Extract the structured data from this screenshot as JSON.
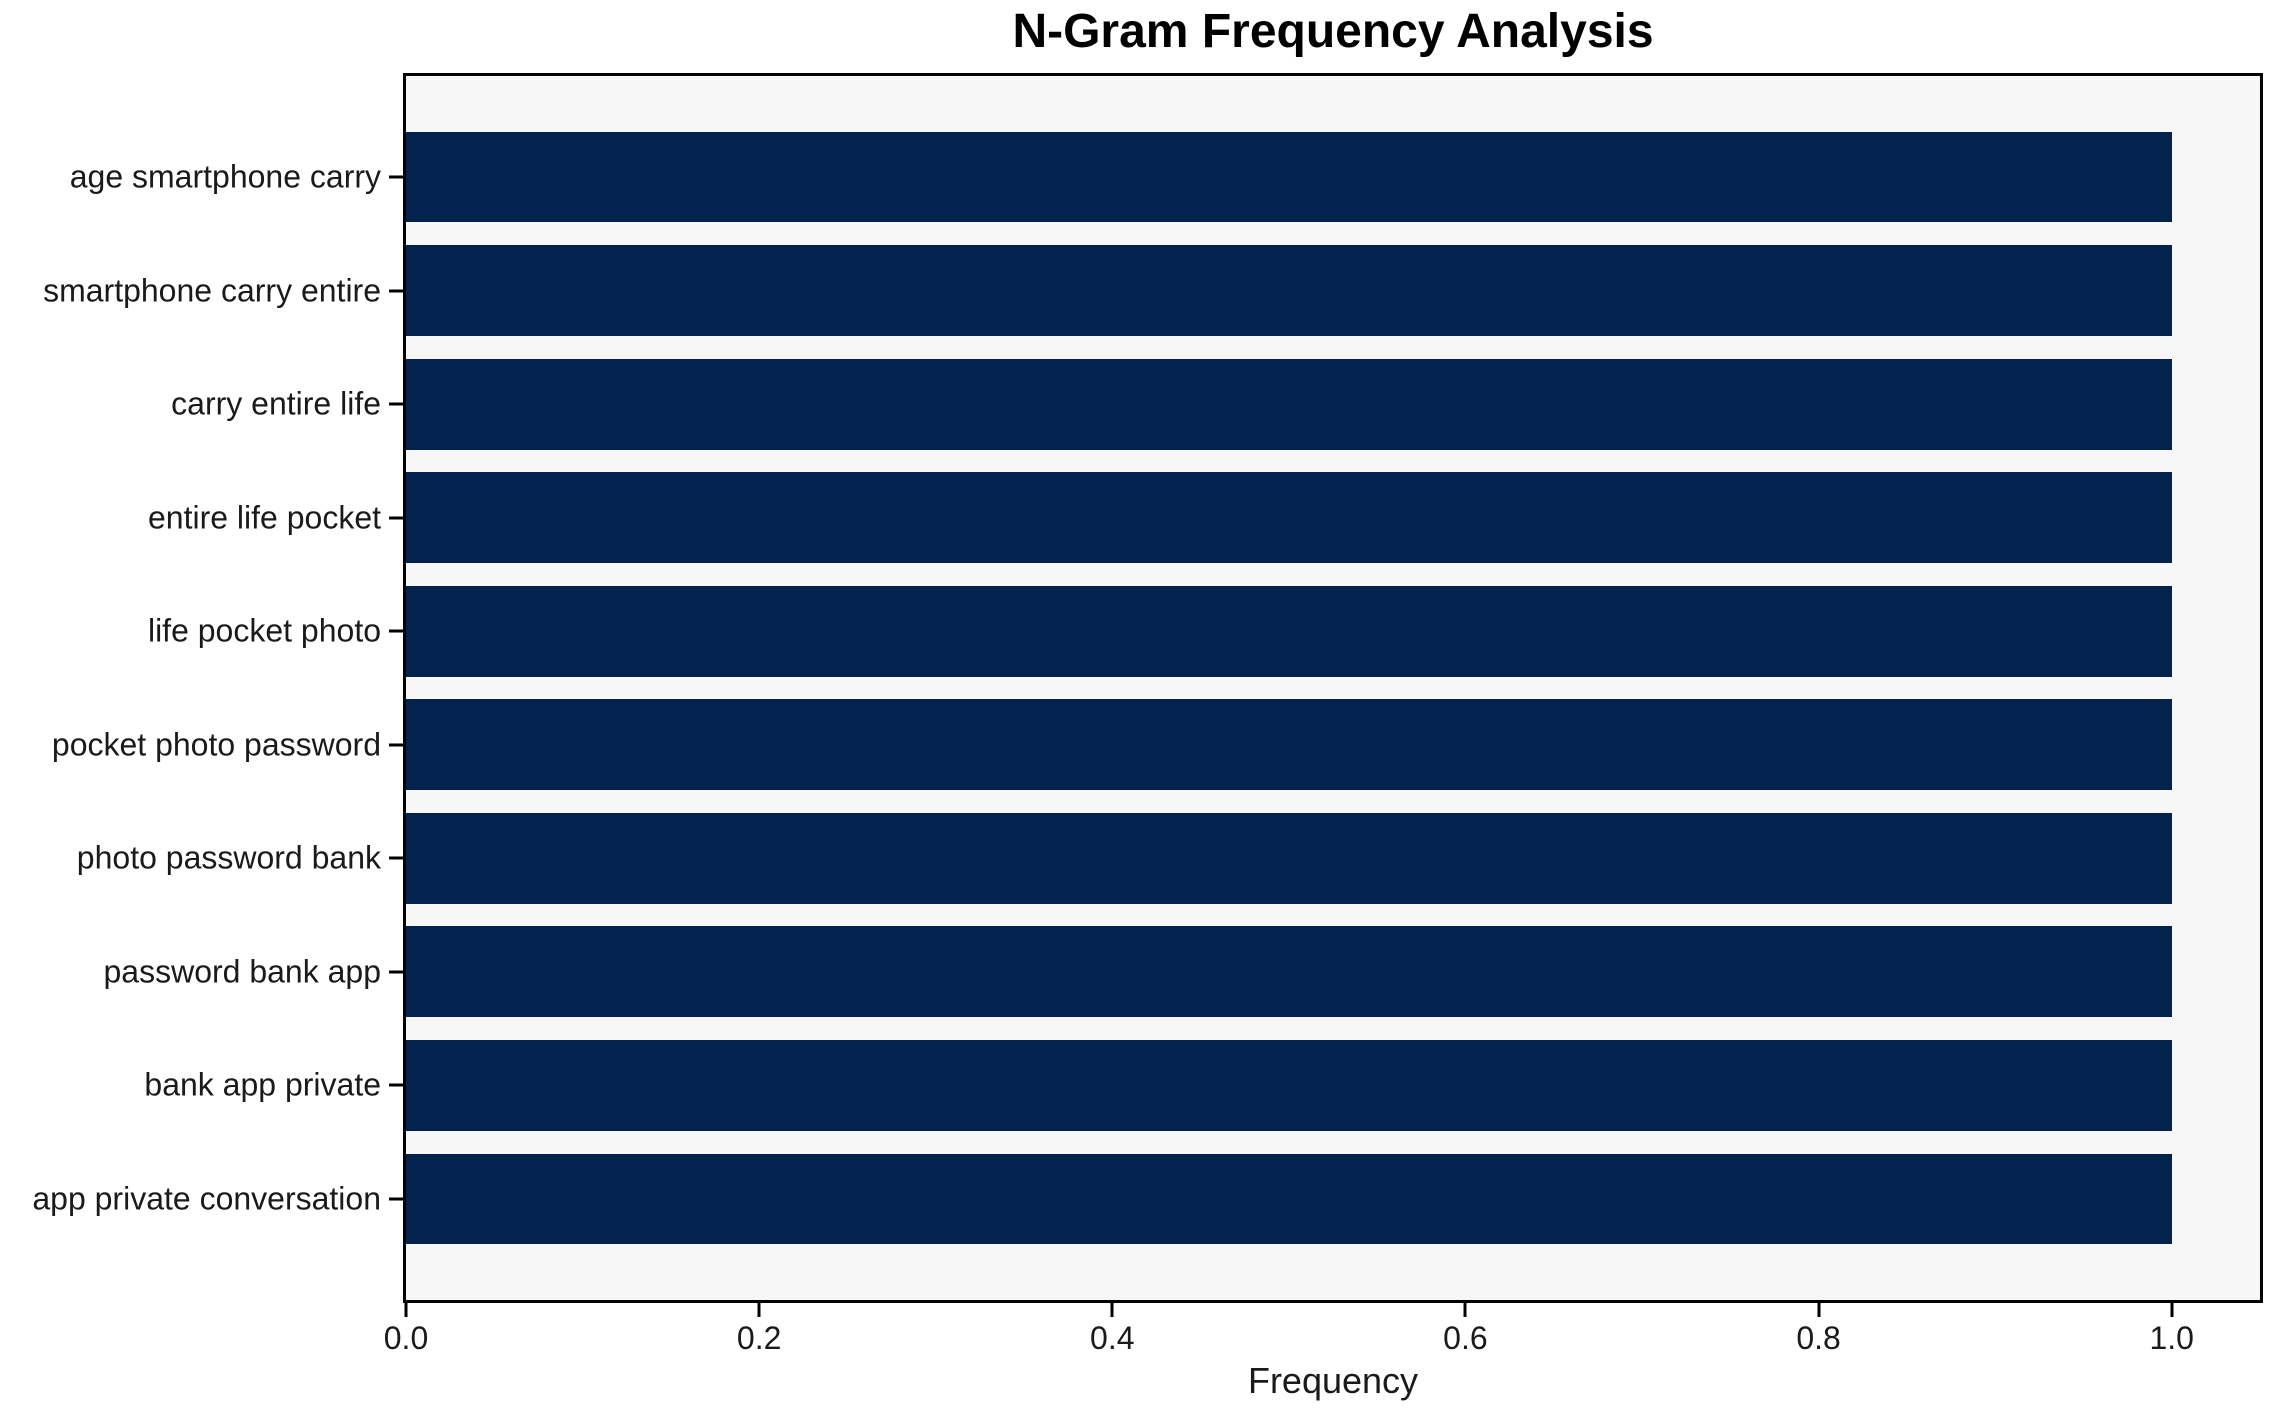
{
  "figure": {
    "background": "#ffffff"
  },
  "chart_data": {
    "type": "bar",
    "orientation": "horizontal",
    "title": "N-Gram Frequency Analysis",
    "xlabel": "Frequency",
    "ylabel": "",
    "categories": [
      "age smartphone carry",
      "smartphone carry entire",
      "carry entire life",
      "entire life pocket",
      "life pocket photo",
      "pocket photo password",
      "photo password bank",
      "password bank app",
      "bank app private",
      "app private conversation"
    ],
    "values": [
      1.0,
      1.0,
      1.0,
      1.0,
      1.0,
      1.0,
      1.0,
      1.0,
      1.0,
      1.0
    ],
    "xlim": [
      0,
      1.05
    ],
    "x_ticks": [
      0.0,
      0.2,
      0.4,
      0.6,
      0.8,
      1.0
    ],
    "x_tick_labels": [
      "0.0",
      "0.2",
      "0.4",
      "0.6",
      "0.8",
      "1.0"
    ],
    "bar_color": "#03234e",
    "plot_background": "#f7f7f7",
    "axis_color": "#000000",
    "grid": false,
    "legend_position": "none"
  }
}
